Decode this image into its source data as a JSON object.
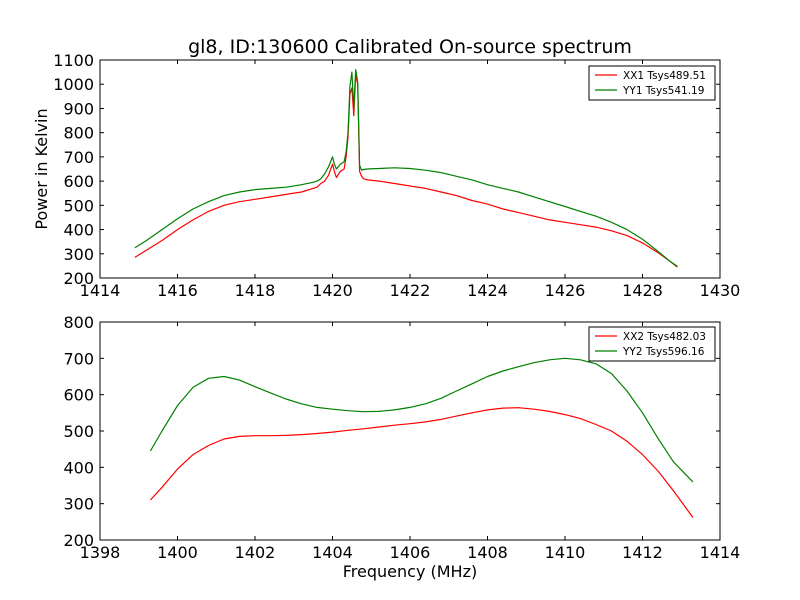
{
  "chart_data": [
    {
      "type": "line",
      "title": "gl8, ID:130600 Calibrated On-source spectrum",
      "xlabel": "",
      "ylabel": "Power in Kelvin",
      "xlim": [
        1414,
        1430
      ],
      "ylim": [
        200,
        1100
      ],
      "xticks": [
        1414,
        1416,
        1418,
        1420,
        1422,
        1424,
        1426,
        1428,
        1430
      ],
      "yticks": [
        200,
        300,
        400,
        500,
        600,
        700,
        800,
        900,
        1000,
        1100
      ],
      "legend_position": "top-right",
      "series": [
        {
          "name": "XX1 Tsys489.51",
          "color": "#ff0000",
          "x": [
            1414.9,
            1415.2,
            1415.6,
            1416.0,
            1416.4,
            1416.8,
            1417.2,
            1417.6,
            1418.0,
            1418.4,
            1418.8,
            1419.2,
            1419.5,
            1419.6,
            1419.7,
            1419.8,
            1419.9,
            1420.0,
            1420.05,
            1420.1,
            1420.2,
            1420.3,
            1420.35,
            1420.4,
            1420.45,
            1420.5,
            1420.55,
            1420.6,
            1420.65,
            1420.7,
            1420.75,
            1420.8,
            1420.9,
            1421.2,
            1421.6,
            1422.0,
            1422.4,
            1422.8,
            1423.2,
            1423.6,
            1424.0,
            1424.4,
            1424.8,
            1425.2,
            1425.6,
            1426.0,
            1426.4,
            1426.8,
            1427.2,
            1427.6,
            1428.0,
            1428.4,
            1428.7,
            1428.9
          ],
          "y": [
            285,
            315,
            355,
            400,
            440,
            475,
            500,
            515,
            525,
            535,
            545,
            555,
            570,
            575,
            590,
            600,
            625,
            670,
            640,
            615,
            640,
            650,
            700,
            780,
            960,
            985,
            870,
            1040,
            1000,
            640,
            620,
            610,
            605,
            600,
            590,
            580,
            570,
            555,
            540,
            520,
            505,
            485,
            470,
            455,
            440,
            430,
            420,
            410,
            395,
            375,
            345,
            305,
            270,
            245
          ]
        },
        {
          "name": "YY1 Tsys541.19",
          "color": "#008000",
          "x": [
            1414.9,
            1415.2,
            1415.6,
            1416.0,
            1416.4,
            1416.8,
            1417.2,
            1417.6,
            1418.0,
            1418.4,
            1418.8,
            1419.2,
            1419.5,
            1419.6,
            1419.7,
            1419.8,
            1419.9,
            1420.0,
            1420.05,
            1420.1,
            1420.2,
            1420.3,
            1420.35,
            1420.4,
            1420.45,
            1420.5,
            1420.55,
            1420.6,
            1420.65,
            1420.7,
            1420.75,
            1420.8,
            1420.9,
            1421.2,
            1421.6,
            1422.0,
            1422.4,
            1422.8,
            1423.2,
            1423.6,
            1424.0,
            1424.4,
            1424.8,
            1425.2,
            1425.6,
            1426.0,
            1426.4,
            1426.8,
            1427.2,
            1427.6,
            1428.0,
            1428.4,
            1428.7,
            1428.9
          ],
          "y": [
            325,
            355,
            400,
            445,
            485,
            515,
            540,
            555,
            565,
            570,
            575,
            585,
            595,
            600,
            610,
            630,
            660,
            700,
            670,
            650,
            670,
            680,
            720,
            800,
            990,
            1050,
            900,
            1060,
            1010,
            665,
            645,
            648,
            650,
            652,
            655,
            652,
            645,
            635,
            620,
            605,
            585,
            570,
            555,
            535,
            515,
            495,
            475,
            455,
            430,
            400,
            360,
            310,
            270,
            248
          ]
        }
      ]
    },
    {
      "type": "line",
      "title": "",
      "xlabel": "Frequency (MHz)",
      "ylabel": "",
      "xlim": [
        1398,
        1414
      ],
      "ylim": [
        200,
        800
      ],
      "xticks": [
        1398,
        1400,
        1402,
        1404,
        1406,
        1408,
        1410,
        1412,
        1414
      ],
      "yticks": [
        200,
        300,
        400,
        500,
        600,
        700,
        800
      ],
      "legend_position": "top-right",
      "series": [
        {
          "name": "XX2 Tsys482.03",
          "color": "#ff0000",
          "x": [
            1399.3,
            1399.6,
            1400.0,
            1400.4,
            1400.8,
            1401.2,
            1401.6,
            1402.0,
            1402.4,
            1402.8,
            1403.2,
            1403.6,
            1404.0,
            1404.4,
            1404.8,
            1405.2,
            1405.6,
            1406.0,
            1406.4,
            1406.8,
            1407.2,
            1407.6,
            1408.0,
            1408.4,
            1408.8,
            1409.2,
            1409.6,
            1410.0,
            1410.4,
            1410.8,
            1411.2,
            1411.6,
            1412.0,
            1412.4,
            1412.8,
            1413.3
          ],
          "y": [
            310,
            345,
            395,
            435,
            460,
            478,
            485,
            487,
            487,
            488,
            490,
            493,
            497,
            502,
            506,
            511,
            516,
            520,
            525,
            532,
            541,
            550,
            558,
            563,
            564,
            560,
            554,
            545,
            534,
            518,
            500,
            472,
            435,
            390,
            335,
            262
          ]
        },
        {
          "name": "YY2 Tsys596.16",
          "color": "#008000",
          "x": [
            1399.3,
            1399.6,
            1400.0,
            1400.4,
            1400.8,
            1401.2,
            1401.6,
            1402.0,
            1402.4,
            1402.8,
            1403.2,
            1403.6,
            1404.0,
            1404.4,
            1404.8,
            1405.2,
            1405.6,
            1406.0,
            1406.4,
            1406.8,
            1407.2,
            1407.6,
            1408.0,
            1408.4,
            1408.8,
            1409.2,
            1409.6,
            1410.0,
            1410.4,
            1410.8,
            1411.2,
            1411.6,
            1412.0,
            1412.4,
            1412.8,
            1413.3
          ],
          "y": [
            445,
            500,
            570,
            620,
            645,
            650,
            640,
            622,
            605,
            588,
            575,
            565,
            560,
            556,
            553,
            554,
            558,
            565,
            575,
            590,
            610,
            630,
            650,
            665,
            677,
            688,
            696,
            700,
            696,
            685,
            658,
            610,
            550,
            480,
            415,
            360
          ]
        }
      ]
    }
  ]
}
